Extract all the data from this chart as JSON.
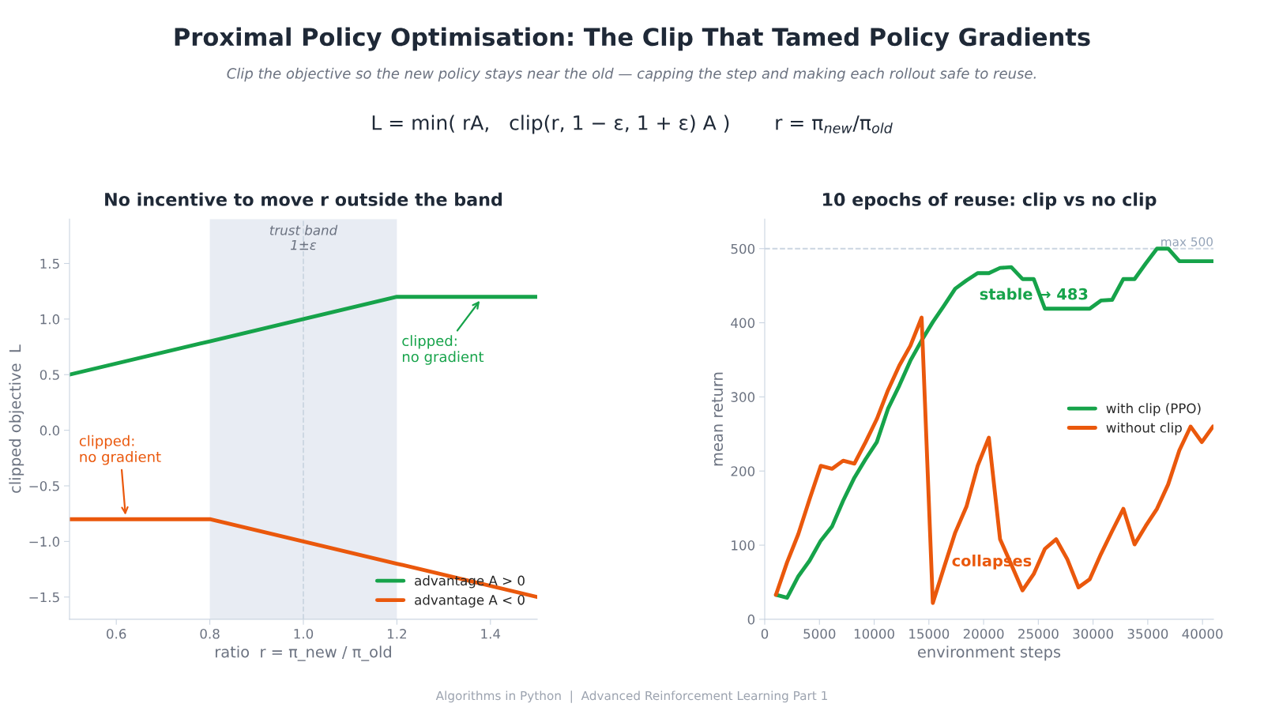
{
  "chart_data": [
    {
      "type": "other",
      "title": "Proximal Policy Optimisation: The Clip That Tamed Policy Gradients",
      "subtitle": "Clip the objective so the new policy stays near the old — capping the step and making each rollout safe to reuse.",
      "annotations": [
        "L = min( rA,   clip(r, 1 − ε, 1 + ε) A )       r = π$_{new}$/π$_{old}$",
        "Algorithms in Python  |  Advanced Reinforcement Learning Part 1"
      ]
    },
    {
      "type": "line",
      "title": "No incentive to move r outside the band",
      "xlabel": "ratio  r = π_new / π_old",
      "ylabel": "clipped objective  L",
      "x": [
        0.5,
        0.8,
        1.0,
        1.2,
        1.5
      ],
      "series": [
        {
          "name": "advantage A > 0",
          "color": "#16a34a",
          "values": [
            0.5,
            0.8,
            1.0,
            1.2,
            1.2
          ]
        },
        {
          "name": "advantage A < 0",
          "color": "#ea580c",
          "values": [
            -0.8,
            -0.8,
            -1.0,
            -1.2,
            -1.5
          ]
        }
      ],
      "xlim": [
        0.5,
        1.5
      ],
      "xticks": [
        0.6,
        0.8,
        {
          "value": 1.0,
          "label": "1.0"
        },
        1.2,
        1.4
      ],
      "ylim": [
        -1.7,
        1.9
      ],
      "yticks": [
        {
          "value": -1.5,
          "label": "−1.5"
        },
        {
          "value": -1.0,
          "label": "−1.0"
        },
        {
          "value": -0.5,
          "label": "−0.5"
        },
        {
          "value": 0.0,
          "label": "0.0"
        },
        0.5,
        {
          "value": 1.0,
          "label": "1.0"
        },
        1.5
      ],
      "bands": [
        {
          "axis": "x",
          "from": 0.8,
          "to": 1.2,
          "label": "trust band\n1±ε",
          "color": "#e8ecf3"
        }
      ],
      "ref_lines": [
        {
          "axis": "x",
          "value": 1.0,
          "color": "#cbd5e1",
          "line_style": "dashed"
        }
      ],
      "annotations": [
        "clipped:\nno gradient",
        "clipped:\nno gradient"
      ],
      "legend": "bottom right",
      "grid": false,
      "marker": "none",
      "line_style": "solid"
    },
    {
      "type": "line",
      "title": "10 epochs of reuse: clip vs no clip",
      "xlabel": "environment steps",
      "ylabel": "mean return",
      "x": [
        1024,
        2048,
        3072,
        4096,
        5120,
        6144,
        7168,
        8192,
        9216,
        10240,
        11264,
        12288,
        13312,
        14336,
        15360,
        16384,
        17408,
        18432,
        19456,
        20480,
        21504,
        22528,
        23552,
        24576,
        25600,
        26624,
        27648,
        28672,
        29696,
        30720,
        31744,
        32768,
        33792,
        34816,
        35840,
        36864,
        37888,
        38912,
        39936,
        40960
      ],
      "series": [
        {
          "name": "with clip (PPO)",
          "color": "#16a34a",
          "values": [
            33,
            29,
            58,
            79,
            106,
            125,
            160,
            191,
            216,
            239,
            284,
            315,
            349,
            376,
            401,
            423,
            446,
            457,
            467,
            467,
            474,
            475,
            459,
            459,
            419,
            419,
            419,
            419,
            419,
            430,
            431,
            459,
            459,
            480,
            500,
            500,
            483,
            483,
            483,
            483
          ]
        },
        {
          "name": "without clip",
          "color": "#ea580c",
          "values": [
            33,
            77,
            115,
            162,
            207,
            203,
            214,
            210,
            239,
            270,
            309,
            342,
            369,
            407,
            22,
            70,
            117,
            152,
            207,
            245,
            108,
            74,
            39,
            61,
            95,
            108,
            81,
            43,
            54,
            88,
            119,
            149,
            101,
            126,
            149,
            182,
            228,
            260,
            239,
            260
          ]
        }
      ],
      "xlim": [
        0,
        41000
      ],
      "xticks": [
        0,
        5000,
        10000,
        15000,
        20000,
        25000,
        30000,
        35000,
        40000
      ],
      "ylim": [
        0,
        540
      ],
      "yticks": [
        0,
        100,
        200,
        300,
        400,
        500
      ],
      "ref_lines": [
        {
          "axis": "y",
          "value": 500,
          "label": "max 500",
          "color": "#cbd5e1",
          "line_style": "dashed"
        }
      ],
      "annotations": [
        {
          "text": "stable → 483",
          "x": 24600,
          "y": 437
        },
        "collapses"
      ],
      "legend": "right",
      "grid": false,
      "marker": "none",
      "line_style": "solid"
    }
  ]
}
